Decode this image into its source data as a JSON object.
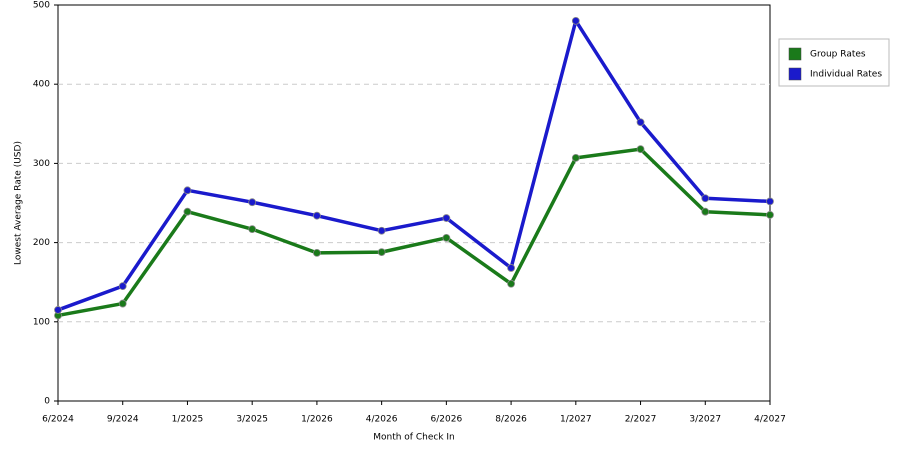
{
  "chart_data": {
    "type": "line",
    "x_label": "Month of Check In",
    "y_label": "Lowest Average Rate (USD)",
    "categories": [
      "6/2024",
      "9/2024",
      "1/2025",
      "3/2025",
      "1/2026",
      "4/2026",
      "6/2026",
      "8/2026",
      "1/2027",
      "2/2027",
      "3/2027",
      "4/2027"
    ],
    "series": [
      {
        "name": "Group Rates",
        "color": "#1a7a1a",
        "values": [
          108,
          123,
          239,
          217,
          187,
          188,
          206,
          148,
          307,
          318,
          239,
          235
        ]
      },
      {
        "name": "Individual Rates",
        "color": "#1a1acc",
        "values": [
          115,
          145,
          266,
          251,
          234,
          215,
          231,
          168,
          480,
          352,
          256,
          252
        ]
      }
    ],
    "ylim": [
      0,
      500
    ],
    "yticks": [
      0,
      100,
      200,
      300,
      400,
      500
    ],
    "grid": true,
    "legend": "right"
  }
}
